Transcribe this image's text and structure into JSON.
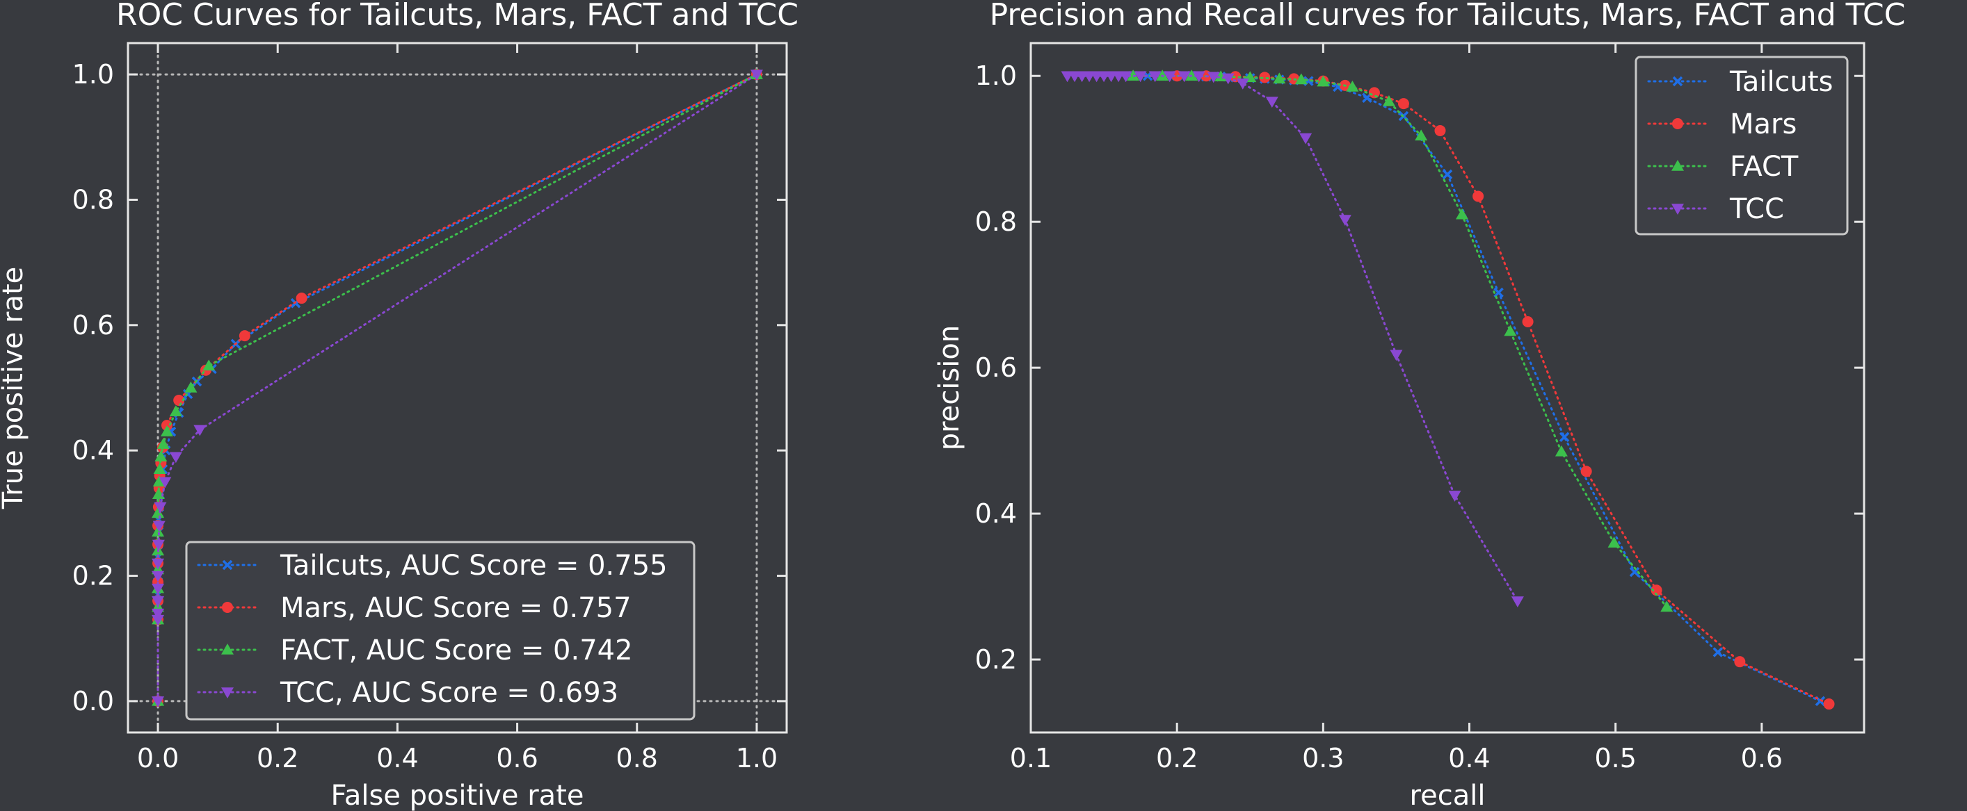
{
  "colors": {
    "background": "#383a3f",
    "axes": "#e6e6e6",
    "Tailcuts": "#1f6fe8",
    "Mars": "#f0393a",
    "FACT": "#3cc04c",
    "TCC": "#8a48d2"
  },
  "chart_data": [
    {
      "type": "line",
      "title": "ROC Curves for Tailcuts, Mars, FACT and TCC",
      "xlabel": "False positive rate",
      "ylabel": "True positive rate",
      "xlim": [
        -0.05,
        1.05
      ],
      "ylim": [
        -0.05,
        1.05
      ],
      "xticks": [
        "0.0",
        "0.2",
        "0.4",
        "0.6",
        "0.8",
        "1.0"
      ],
      "yticks": [
        "0.0",
        "0.2",
        "0.4",
        "0.6",
        "0.8",
        "1.0"
      ],
      "reference_lines": {
        "x": [
          0,
          1
        ],
        "y": [
          0,
          1
        ],
        "style": "dotted"
      },
      "legend_position": "lower-right",
      "legend": [
        "Tailcuts, AUC Score = 0.755",
        "Mars, AUC Score = 0.757",
        "FACT, AUC Score = 0.742",
        "TCC, AUC Score = 0.693"
      ],
      "series": [
        {
          "name": "Tailcuts",
          "marker": "x",
          "x": [
            0,
            0,
            0,
            0,
            0,
            0,
            0,
            0,
            0.001,
            0.001,
            0.002,
            0.003,
            0.005,
            0.008,
            0.013,
            0.022,
            0.035,
            0.05,
            0.065,
            0.09,
            0.13,
            0.23,
            1.0
          ],
          "y": [
            0,
            0.13,
            0.15,
            0.17,
            0.19,
            0.21,
            0.23,
            0.25,
            0.27,
            0.29,
            0.31,
            0.33,
            0.35,
            0.37,
            0.4,
            0.43,
            0.46,
            0.49,
            0.51,
            0.53,
            0.57,
            0.635,
            1.0
          ]
        },
        {
          "name": "Mars",
          "marker": "o",
          "x": [
            0,
            0,
            0,
            0,
            0,
            0,
            0,
            0.001,
            0.002,
            0.003,
            0.005,
            0.008,
            0.015,
            0.035,
            0.08,
            0.145,
            0.24,
            1.0
          ],
          "y": [
            0,
            0.13,
            0.16,
            0.19,
            0.22,
            0.25,
            0.28,
            0.31,
            0.34,
            0.36,
            0.38,
            0.405,
            0.44,
            0.48,
            0.528,
            0.583,
            0.643,
            1.0
          ]
        },
        {
          "name": "FACT",
          "marker": "^",
          "x": [
            0,
            0,
            0,
            0,
            0,
            0,
            0,
            0,
            0.001,
            0.002,
            0.003,
            0.005,
            0.009,
            0.015,
            0.03,
            0.055,
            0.085,
            1.0
          ],
          "y": [
            0,
            0.13,
            0.15,
            0.18,
            0.21,
            0.24,
            0.27,
            0.3,
            0.33,
            0.35,
            0.37,
            0.39,
            0.41,
            0.43,
            0.462,
            0.5,
            0.535,
            1.0
          ]
        },
        {
          "name": "TCC",
          "marker": "v",
          "x": [
            0,
            0,
            0,
            0,
            0,
            0,
            0,
            0.001,
            0.002,
            0.004,
            0.012,
            0.03,
            0.07,
            1.0
          ],
          "y": [
            0,
            0.13,
            0.14,
            0.16,
            0.18,
            0.2,
            0.22,
            0.25,
            0.28,
            0.31,
            0.35,
            0.39,
            0.433,
            1.0
          ]
        }
      ]
    },
    {
      "type": "line",
      "title": "Precision and Recall curves for Tailcuts, Mars, FACT and TCC",
      "xlabel": "recall",
      "ylabel": "precision",
      "xlim": [
        0.1,
        0.67
      ],
      "ylim": [
        0.1,
        1.045
      ],
      "xticks": [
        "0.1",
        "0.2",
        "0.3",
        "0.4",
        "0.5",
        "0.6"
      ],
      "yticks": [
        "0.2",
        "0.4",
        "0.6",
        "0.8",
        "1.0"
      ],
      "legend_position": "top-right",
      "legend": [
        "Tailcuts",
        "Mars",
        "FACT",
        "TCC"
      ],
      "series": [
        {
          "name": "Tailcuts",
          "marker": "x",
          "x": [
            0.17,
            0.18,
            0.19,
            0.2,
            0.21,
            0.22,
            0.23,
            0.24,
            0.25,
            0.26,
            0.27,
            0.28,
            0.29,
            0.31,
            0.33,
            0.355,
            0.385,
            0.42,
            0.465,
            0.513,
            0.57,
            0.64
          ],
          "y": [
            1.0,
            1.0,
            1.0,
            1.0,
            1.0,
            0.999,
            0.999,
            0.998,
            0.997,
            0.996,
            0.995,
            0.994,
            0.993,
            0.985,
            0.97,
            0.945,
            0.865,
            0.703,
            0.505,
            0.32,
            0.21,
            0.143
          ]
        },
        {
          "name": "Mars",
          "marker": "o",
          "x": [
            0.2,
            0.22,
            0.24,
            0.26,
            0.28,
            0.3,
            0.315,
            0.335,
            0.355,
            0.38,
            0.406,
            0.44,
            0.48,
            0.528,
            0.585,
            0.646
          ],
          "y": [
            1.0,
            1.0,
            0.999,
            0.998,
            0.996,
            0.993,
            0.987,
            0.977,
            0.962,
            0.925,
            0.835,
            0.663,
            0.458,
            0.295,
            0.197,
            0.139
          ]
        },
        {
          "name": "FACT",
          "marker": "^",
          "x": [
            0.17,
            0.19,
            0.21,
            0.23,
            0.25,
            0.27,
            0.285,
            0.3,
            0.32,
            0.345,
            0.367,
            0.395,
            0.428,
            0.463,
            0.499,
            0.535
          ],
          "y": [
            1.0,
            1.0,
            1.0,
            0.999,
            0.998,
            0.996,
            0.995,
            0.992,
            0.985,
            0.965,
            0.918,
            0.81,
            0.65,
            0.485,
            0.36,
            0.272
          ]
        },
        {
          "name": "TCC",
          "marker": "v",
          "x": [
            0.125,
            0.13,
            0.135,
            0.14,
            0.145,
            0.15,
            0.155,
            0.16,
            0.165,
            0.175,
            0.185,
            0.195,
            0.205,
            0.215,
            0.225,
            0.235,
            0.245,
            0.265,
            0.288,
            0.315,
            0.35,
            0.39,
            0.433
          ],
          "y": [
            1.0,
            1.0,
            1.0,
            1.0,
            1.0,
            1.0,
            1.0,
            1.0,
            1.0,
            1.0,
            1.0,
            1.0,
            1.0,
            1.0,
            0.999,
            0.997,
            0.99,
            0.965,
            0.915,
            0.803,
            0.618,
            0.425,
            0.28
          ]
        }
      ]
    }
  ]
}
